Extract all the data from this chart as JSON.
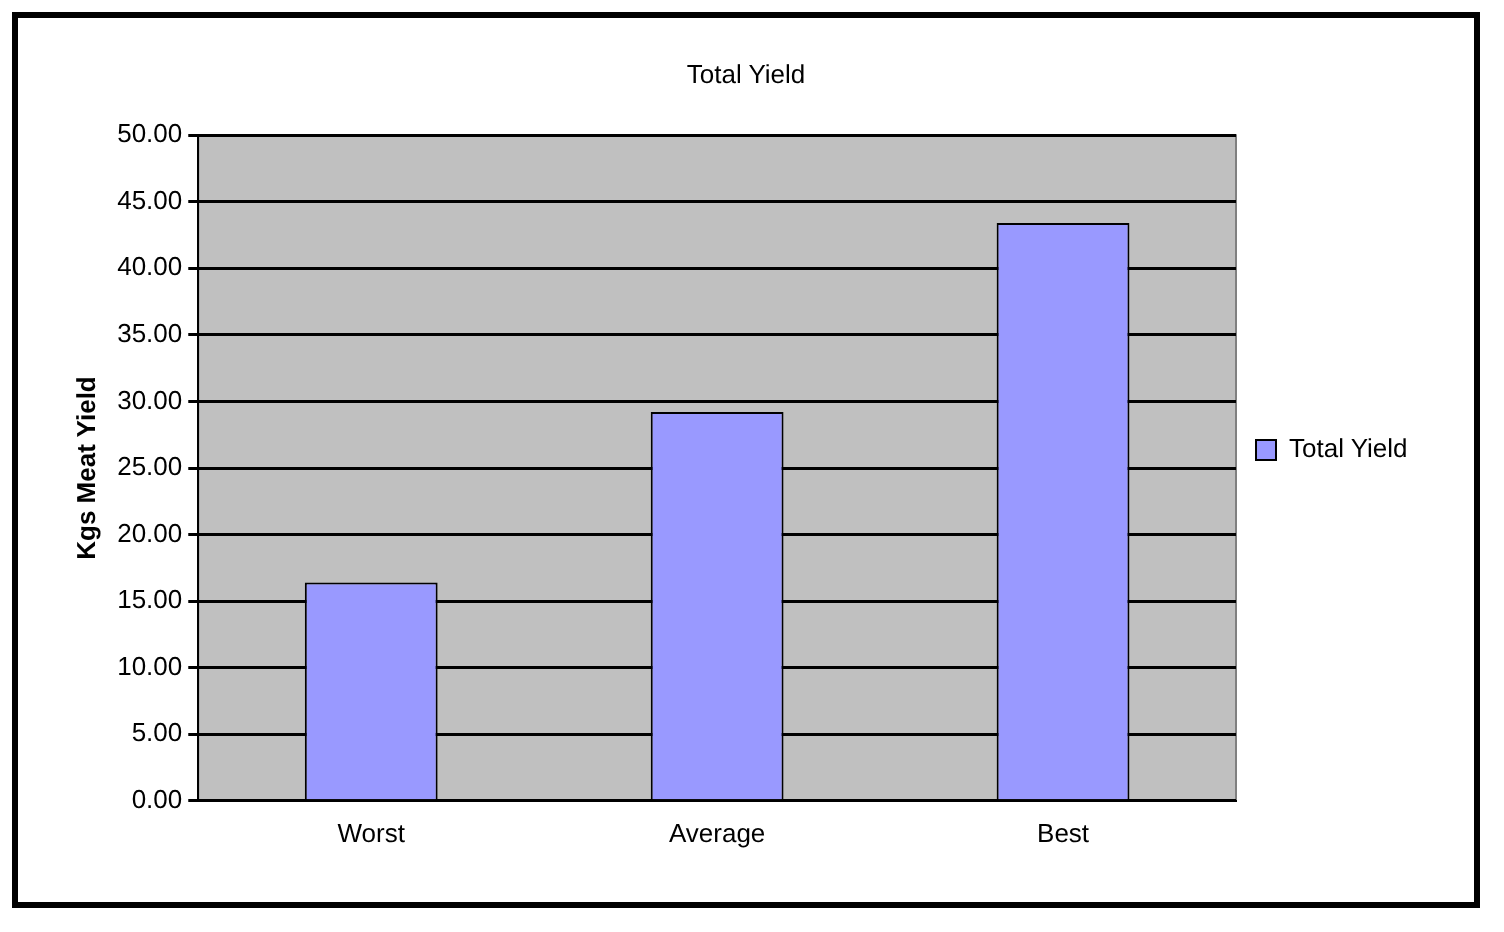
{
  "chart_data": {
    "type": "bar",
    "title": "Total Yield",
    "ylabel": "Kgs Meat Yield",
    "categories": [
      "Worst",
      "Average",
      "Best"
    ],
    "series": [
      {
        "name": "Total Yield",
        "color": "#9999ff",
        "values": [
          16.4,
          29.2,
          43.4
        ]
      }
    ],
    "ylim": [
      0,
      50
    ],
    "yticks": [
      {
        "value": 0,
        "label": "0.00"
      },
      {
        "value": 5,
        "label": "5.00"
      },
      {
        "value": 10,
        "label": "10.00"
      },
      {
        "value": 15,
        "label": "15.00"
      },
      {
        "value": 20,
        "label": "20.00"
      },
      {
        "value": 25,
        "label": "25.00"
      },
      {
        "value": 30,
        "label": "30.00"
      },
      {
        "value": 35,
        "label": "35.00"
      },
      {
        "value": 40,
        "label": "40.00"
      },
      {
        "value": 45,
        "label": "45.00"
      },
      {
        "value": 50,
        "label": "50.00"
      }
    ],
    "grid": "y",
    "legend": "right"
  }
}
